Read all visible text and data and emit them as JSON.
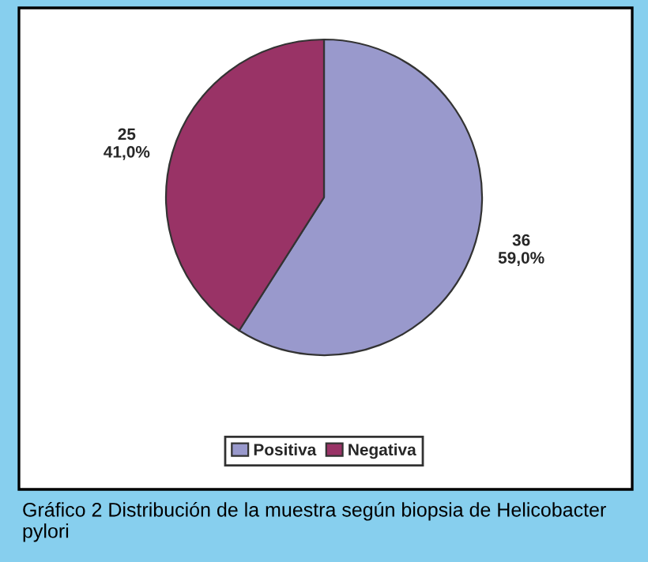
{
  "chart_data": {
    "type": "pie",
    "categories": [
      "Positiva",
      "Negativa"
    ],
    "values": [
      36,
      25
    ],
    "colors": [
      "#9999cc",
      "#993366"
    ],
    "value_labels": [
      "36\n59,0%",
      "25\n41,0%"
    ],
    "legend": "bottom",
    "annotations": [
      "Gráfico 2 Distribución de la muestra según biopsia de Helicobacter pylori"
    ]
  }
}
